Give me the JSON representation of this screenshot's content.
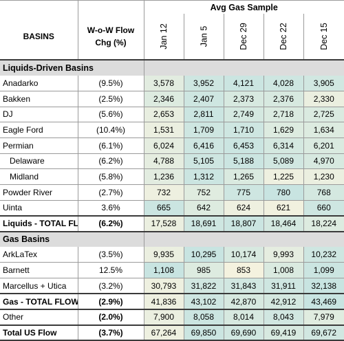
{
  "header": {
    "group_title": "Avg Gas Sample",
    "basins_label": "BASINS",
    "chg_label_1": "W-o-W Flow",
    "chg_label_2": "Chg (%)",
    "dates": [
      "Jan 12",
      "Jan 5",
      "Dec 29",
      "Dec 22",
      "Dec 15"
    ]
  },
  "colors": {
    "teal": "#c2e2e1",
    "cream": "#fdf5df",
    "section_gray": "#dcdcdc"
  },
  "rows": [
    {
      "kind": "section",
      "name": "Liquids-Driven Basins"
    },
    {
      "kind": "data",
      "name": "Anadarko",
      "chg": "(9.5%)",
      "values": [
        "3,578",
        "3,952",
        "4,121",
        "4,028",
        "3,905"
      ],
      "shade": [
        0.55,
        0.2,
        0.15,
        0.2,
        0.25
      ]
    },
    {
      "kind": "data",
      "name": "Bakken",
      "chg": "(2.5%)",
      "values": [
        "2,346",
        "2,407",
        "2,373",
        "2,376",
        "2,330"
      ],
      "shade": [
        0.45,
        0.2,
        0.35,
        0.35,
        0.7
      ]
    },
    {
      "kind": "data",
      "name": "DJ",
      "chg": "(5.6%)",
      "values": [
        "2,653",
        "2,811",
        "2,749",
        "2,718",
        "2,725"
      ],
      "shade": [
        0.65,
        0.15,
        0.3,
        0.4,
        0.4
      ]
    },
    {
      "kind": "data",
      "name": "Eagle Ford",
      "chg": "(10.4%)",
      "values": [
        "1,531",
        "1,709",
        "1,710",
        "1,629",
        "1,634"
      ],
      "shade": [
        0.7,
        0.2,
        0.2,
        0.45,
        0.45
      ]
    },
    {
      "kind": "data",
      "name": "Permian",
      "chg": "(6.1%)",
      "values": [
        "6,024",
        "6,416",
        "6,453",
        "6,314",
        "6,201"
      ],
      "shade": [
        0.6,
        0.2,
        0.15,
        0.3,
        0.4
      ]
    },
    {
      "kind": "data",
      "name": "Delaware",
      "indent": true,
      "chg": "(6.2%)",
      "values": [
        "4,788",
        "5,105",
        "5,188",
        "5,089",
        "4,970"
      ],
      "shade": [
        0.6,
        0.2,
        0.15,
        0.25,
        0.35
      ]
    },
    {
      "kind": "data",
      "name": "Midland",
      "indent": true,
      "chg": "(5.8%)",
      "values": [
        "1,236",
        "1,312",
        "1,265",
        "1,225",
        "1,230"
      ],
      "shade": [
        0.55,
        0.15,
        0.4,
        0.75,
        0.7
      ]
    },
    {
      "kind": "data",
      "name": "Powder River",
      "chg": "(2.7%)",
      "values": [
        "732",
        "752",
        "775",
        "780",
        "768"
      ],
      "shade": [
        0.75,
        0.5,
        0.2,
        0.1,
        0.3
      ]
    },
    {
      "kind": "data",
      "name": "Uinta",
      "chg": "3.6%",
      "values": [
        "665",
        "642",
        "624",
        "621",
        "660"
      ],
      "shade": [
        0.15,
        0.45,
        0.75,
        0.8,
        0.2
      ]
    },
    {
      "kind": "total",
      "name": "Liquids - TOTAL FLOW",
      "chg": "(6.2%)",
      "values": [
        "17,528",
        "18,691",
        "18,807",
        "18,464",
        "18,224"
      ],
      "shade": [
        0.7,
        0.2,
        0.15,
        0.3,
        0.45
      ]
    },
    {
      "kind": "section",
      "name": "Gas Basins"
    },
    {
      "kind": "data",
      "name": "ArkLaTex",
      "chg": "(3.5%)",
      "values": [
        "9,935",
        "10,295",
        "10,174",
        "9,993",
        "10,232"
      ],
      "shade": [
        0.7,
        0.1,
        0.35,
        0.6,
        0.2
      ]
    },
    {
      "kind": "data",
      "name": "Barnett",
      "chg": "12.5%",
      "values": [
        "1,108",
        "985",
        "853",
        "1,008",
        "1,099"
      ],
      "shade": [
        0.1,
        0.45,
        0.85,
        0.4,
        0.15
      ]
    },
    {
      "kind": "data",
      "name": "Marcellus + Utica",
      "chg": "(3.2%)",
      "values": [
        "30,793",
        "31,822",
        "31,843",
        "31,911",
        "32,138"
      ],
      "shade": [
        0.75,
        0.25,
        0.25,
        0.2,
        0.1
      ]
    },
    {
      "kind": "total",
      "name": "Gas - TOTAL FLOW",
      "chg": "(2.9%)",
      "values": [
        "41,836",
        "43,102",
        "42,870",
        "42,912",
        "43,469"
      ],
      "shade": [
        0.75,
        0.2,
        0.35,
        0.3,
        0.1
      ]
    },
    {
      "kind": "total",
      "name": "Other",
      "plain": true,
      "chg": "(2.0%)",
      "values": [
        "7,900",
        "8,058",
        "8,014",
        "8,043",
        "7,979"
      ],
      "shade": [
        0.7,
        0.15,
        0.35,
        0.25,
        0.5
      ]
    },
    {
      "kind": "total",
      "name": "Total US Flow",
      "chg": "(3.7%)",
      "values": [
        "67,264",
        "69,850",
        "69,690",
        "69,419",
        "69,672"
      ],
      "shade": [
        0.75,
        0.15,
        0.25,
        0.35,
        0.25
      ]
    }
  ]
}
